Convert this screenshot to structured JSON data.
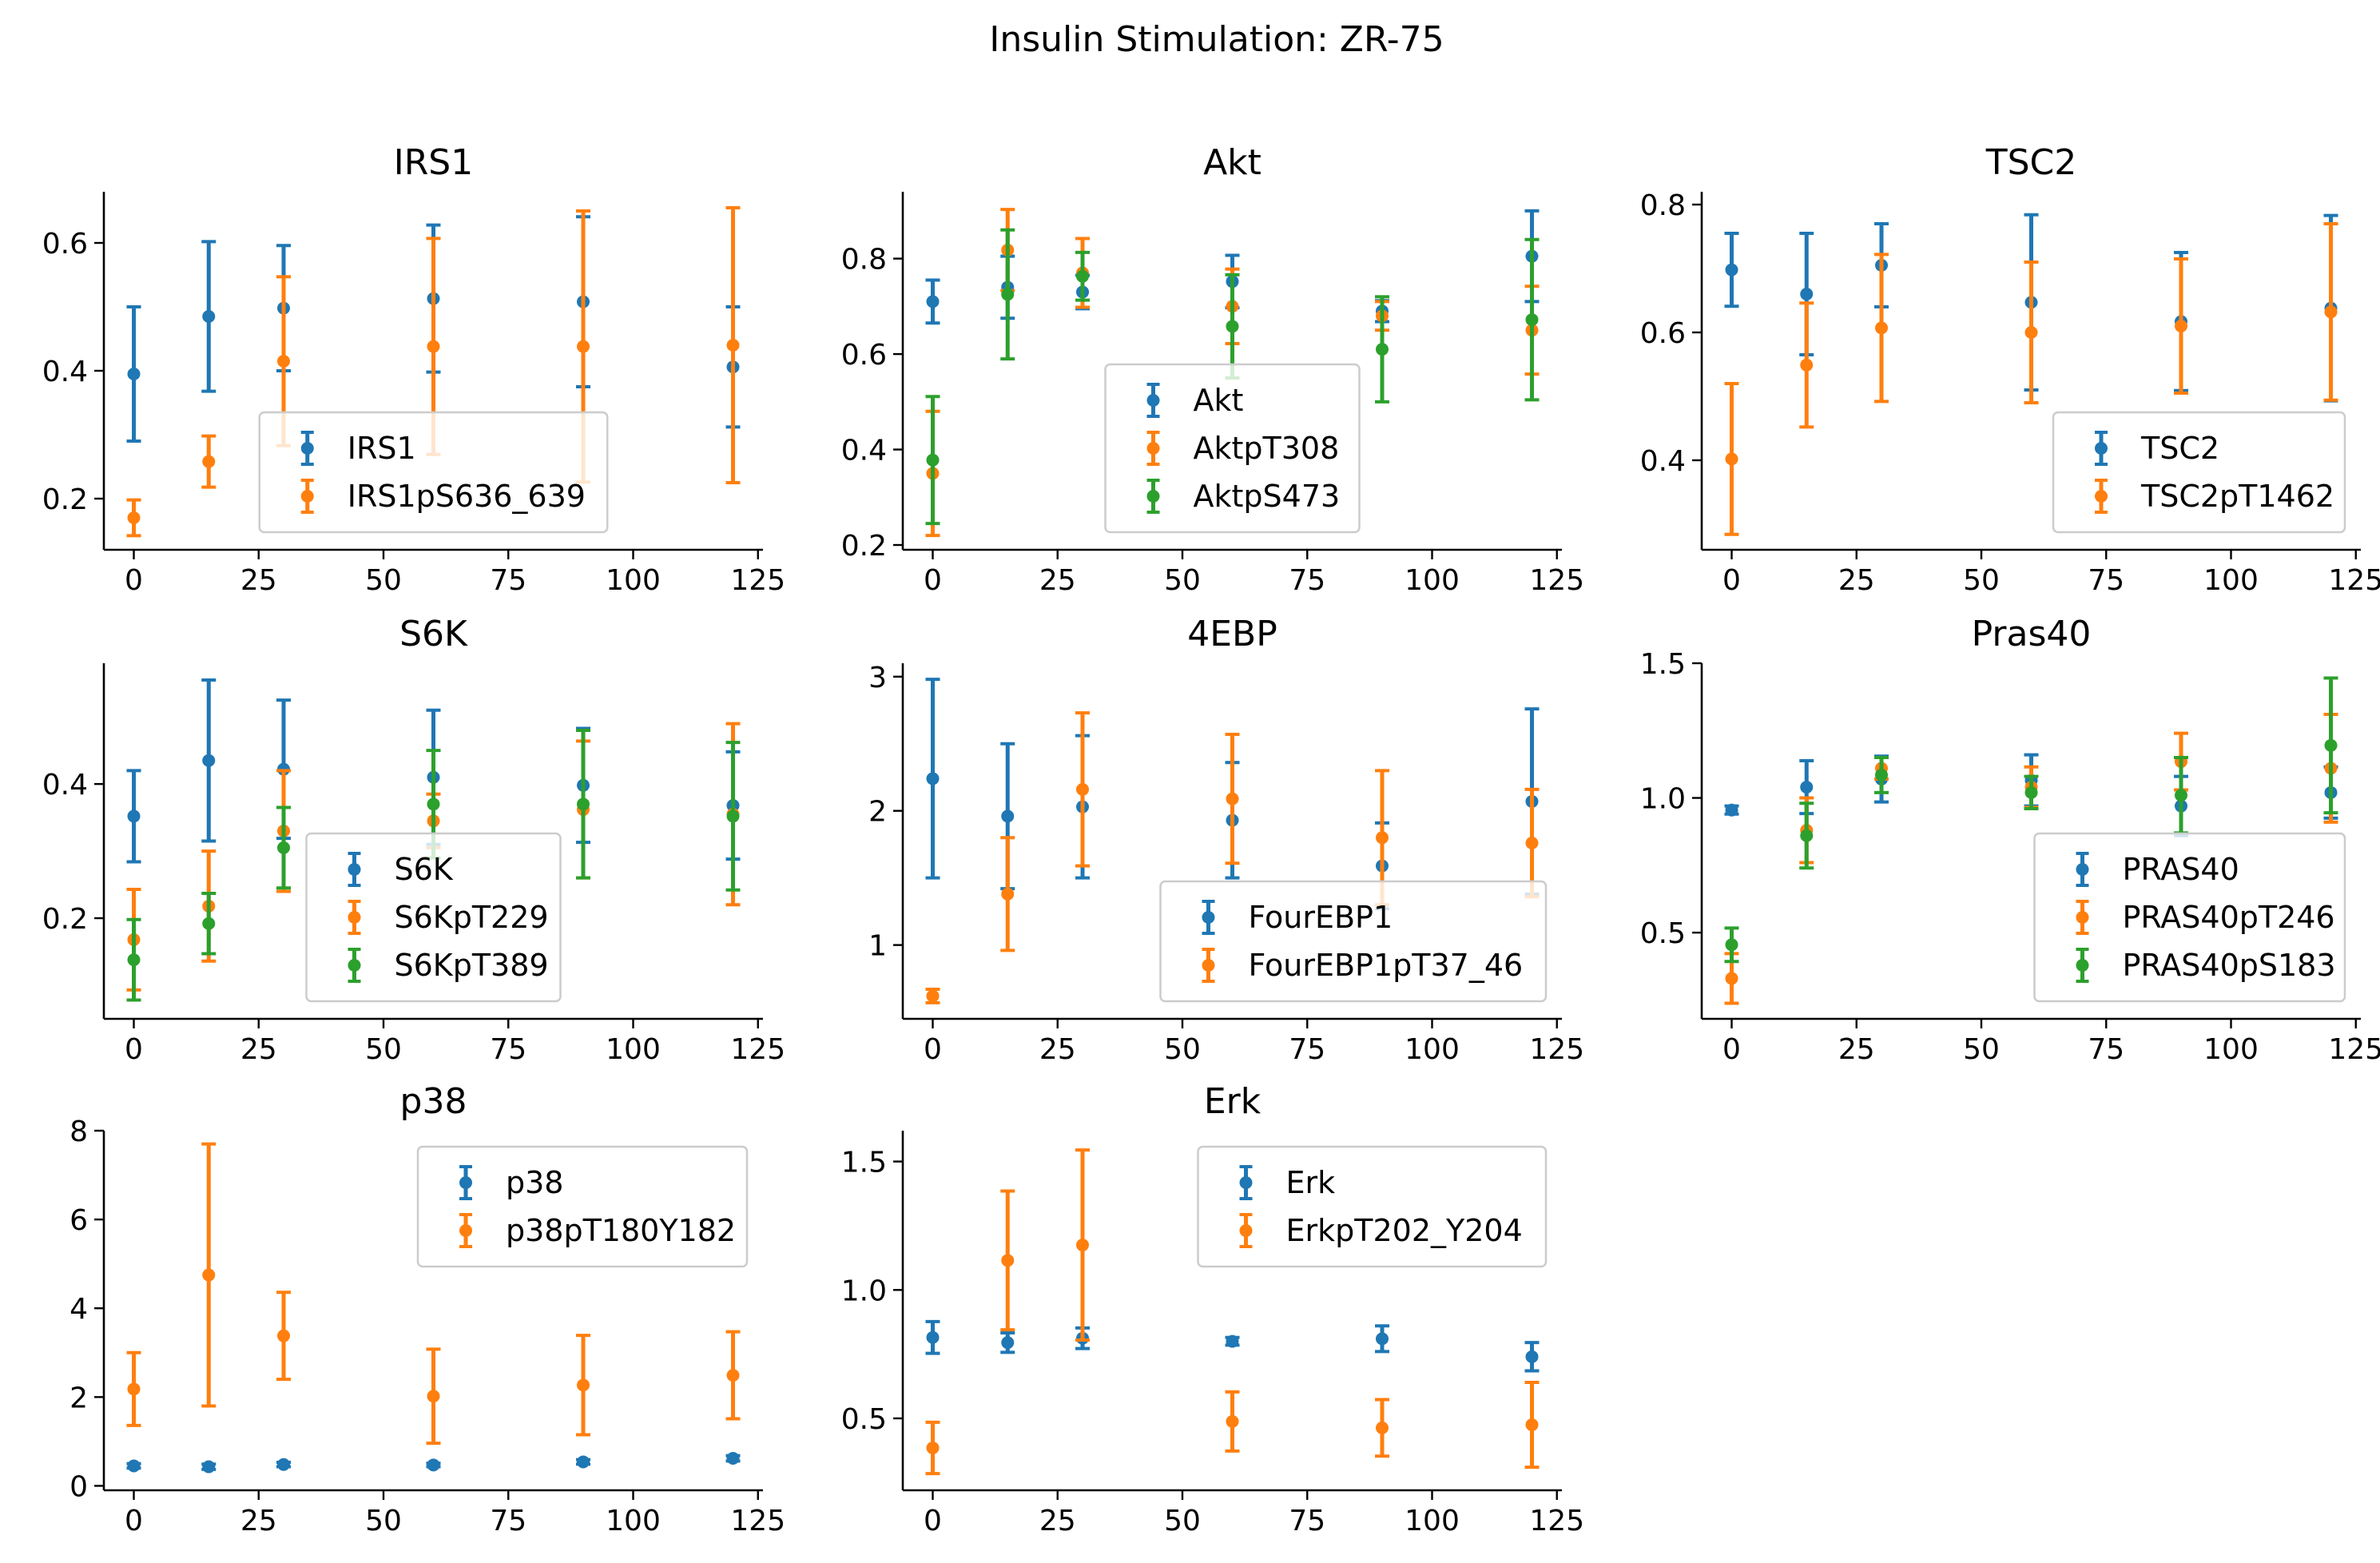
{
  "suptitle": "Insulin Stimulation: ZR-75",
  "colors": {
    "blue": "#1f77b4",
    "orange": "#ff7f0e",
    "green": "#2ca02c"
  },
  "chart_data": [
    {
      "type": "scatter",
      "title": "IRS1",
      "legend": "lower-center",
      "xlim": [
        -6,
        126
      ],
      "ylim": [
        0.12,
        0.68
      ],
      "xticks": [
        0,
        25,
        50,
        75,
        100,
        125
      ],
      "yticks": [
        0.2,
        0.4,
        0.6
      ],
      "x": [
        0,
        15,
        30,
        60,
        90,
        120
      ],
      "series": [
        {
          "name": "IRS1",
          "color": "#1f77b4",
          "y": [
            0.395,
            0.485,
            0.498,
            0.513,
            0.508,
            0.406
          ],
          "err": [
            0.105,
            0.117,
            0.098,
            0.115,
            0.133,
            0.094
          ]
        },
        {
          "name": "IRS1pS636_639",
          "color": "#ff7f0e",
          "y": [
            0.17,
            0.258,
            0.415,
            0.438,
            0.438,
            0.44
          ],
          "err": [
            0.028,
            0.04,
            0.132,
            0.169,
            0.212,
            0.215
          ]
        }
      ]
    },
    {
      "type": "scatter",
      "title": "Akt",
      "legend": "lower-center",
      "xlim": [
        -6,
        126
      ],
      "ylim": [
        0.19,
        0.94
      ],
      "xticks": [
        0,
        25,
        50,
        75,
        100,
        125
      ],
      "yticks": [
        0.2,
        0.4,
        0.6,
        0.8
      ],
      "x": [
        0,
        15,
        30,
        60,
        90,
        120
      ],
      "series": [
        {
          "name": "Akt",
          "color": "#1f77b4",
          "y": [
            0.71,
            0.74,
            0.73,
            0.752,
            0.69,
            0.805
          ],
          "err": [
            0.045,
            0.065,
            0.035,
            0.055,
            0.022,
            0.095
          ]
        },
        {
          "name": "AktpT308",
          "color": "#ff7f0e",
          "y": [
            0.35,
            0.818,
            0.77,
            0.7,
            0.68,
            0.65
          ],
          "err": [
            0.13,
            0.085,
            0.072,
            0.078,
            0.03,
            0.092
          ]
        },
        {
          "name": "AktpS473",
          "color": "#2ca02c",
          "y": [
            0.378,
            0.725,
            0.763,
            0.658,
            0.61,
            0.672
          ],
          "err": [
            0.133,
            0.135,
            0.05,
            0.108,
            0.11,
            0.168
          ]
        }
      ]
    },
    {
      "type": "scatter",
      "title": "TSC2",
      "legend": "lower-right",
      "xlim": [
        -6,
        126
      ],
      "ylim": [
        0.26,
        0.82
      ],
      "xticks": [
        0,
        25,
        50,
        75,
        100,
        125
      ],
      "yticks": [
        0.4,
        0.6,
        0.8
      ],
      "x": [
        0,
        15,
        30,
        60,
        90,
        120
      ],
      "series": [
        {
          "name": "TSC2",
          "color": "#1f77b4",
          "y": [
            0.698,
            0.66,
            0.705,
            0.647,
            0.617,
            0.638
          ],
          "err": [
            0.057,
            0.095,
            0.065,
            0.137,
            0.108,
            0.145
          ]
        },
        {
          "name": "TSC2pT1462",
          "color": "#ff7f0e",
          "y": [
            0.402,
            0.549,
            0.607,
            0.6,
            0.61,
            0.632
          ],
          "err": [
            0.118,
            0.097,
            0.115,
            0.11,
            0.105,
            0.138
          ]
        }
      ]
    },
    {
      "type": "scatter",
      "title": "S6K",
      "legend": "lower-center",
      "xlim": [
        -6,
        126
      ],
      "ylim": [
        0.05,
        0.58
      ],
      "xticks": [
        0,
        25,
        50,
        75,
        100,
        125
      ],
      "yticks": [
        0.2,
        0.4
      ],
      "x": [
        0,
        15,
        30,
        60,
        90,
        120
      ],
      "series": [
        {
          "name": "S6K",
          "color": "#1f77b4",
          "y": [
            0.352,
            0.435,
            0.422,
            0.41,
            0.398,
            0.368
          ],
          "err": [
            0.068,
            0.12,
            0.103,
            0.1,
            0.085,
            0.08
          ]
        },
        {
          "name": "S6KpT229",
          "color": "#ff7f0e",
          "y": [
            0.168,
            0.218,
            0.33,
            0.345,
            0.362,
            0.355
          ],
          "err": [
            0.075,
            0.082,
            0.09,
            0.04,
            0.102,
            0.135
          ]
        },
        {
          "name": "S6KpT389",
          "color": "#2ca02c",
          "y": [
            0.138,
            0.192,
            0.305,
            0.37,
            0.37,
            0.352
          ],
          "err": [
            0.06,
            0.045,
            0.06,
            0.08,
            0.11,
            0.11
          ]
        }
      ]
    },
    {
      "type": "scatter",
      "title": "4EBP",
      "legend": "lower-right",
      "xlim": [
        -6,
        126
      ],
      "ylim": [
        0.45,
        3.1
      ],
      "xticks": [
        0,
        25,
        50,
        75,
        100,
        125
      ],
      "yticks": [
        1,
        2,
        3
      ],
      "x": [
        0,
        15,
        30,
        60,
        90,
        120
      ],
      "series": [
        {
          "name": "FourEBP1",
          "color": "#1f77b4",
          "y": [
            2.24,
            1.96,
            2.03,
            1.93,
            1.59,
            2.07
          ],
          "err": [
            0.74,
            0.54,
            0.53,
            0.43,
            0.32,
            0.69
          ]
        },
        {
          "name": "FourEBP1pT37_46",
          "color": "#ff7f0e",
          "y": [
            0.62,
            1.38,
            2.16,
            2.09,
            1.8,
            1.76
          ],
          "err": [
            0.05,
            0.42,
            0.57,
            0.48,
            0.5,
            0.4
          ]
        }
      ]
    },
    {
      "type": "scatter",
      "title": "Pras40",
      "legend": "lower-right",
      "xlim": [
        -6,
        126
      ],
      "ylim": [
        0.18,
        1.5
      ],
      "xticks": [
        0,
        25,
        50,
        75,
        100,
        125
      ],
      "yticks": [
        0.5,
        1.0,
        1.5
      ],
      "x": [
        0,
        15,
        30,
        60,
        90,
        120
      ],
      "series": [
        {
          "name": "PRAS40",
          "color": "#1f77b4",
          "y": [
            0.955,
            1.04,
            1.07,
            1.065,
            0.97,
            1.02
          ],
          "err": [
            0.015,
            0.098,
            0.085,
            0.095,
            0.11,
            0.095
          ]
        },
        {
          "name": "PRAS40pT246",
          "color": "#ff7f0e",
          "y": [
            0.33,
            0.88,
            1.11,
            1.04,
            1.135,
            1.11
          ],
          "err": [
            0.092,
            0.12,
            0.04,
            0.075,
            0.105,
            0.2
          ]
        },
        {
          "name": "PRAS40pS183",
          "color": "#2ca02c",
          "y": [
            0.455,
            0.86,
            1.085,
            1.02,
            1.01,
            1.195
          ],
          "err": [
            0.062,
            0.12,
            0.065,
            0.06,
            0.14,
            0.25
          ]
        }
      ]
    },
    {
      "type": "scatter",
      "title": "p38",
      "legend": "upper-right",
      "xlim": [
        -6,
        126
      ],
      "ylim": [
        -0.1,
        8.0
      ],
      "xticks": [
        0,
        25,
        50,
        75,
        100,
        125
      ],
      "yticks": [
        0,
        2,
        4,
        6,
        8
      ],
      "x": [
        0,
        15,
        30,
        60,
        90,
        120
      ],
      "series": [
        {
          "name": "p38",
          "color": "#1f77b4",
          "y": [
            0.45,
            0.43,
            0.48,
            0.47,
            0.54,
            0.62
          ],
          "err": [
            0.05,
            0.06,
            0.05,
            0.04,
            0.05,
            0.06
          ]
        },
        {
          "name": "p38pT180Y182",
          "color": "#ff7f0e",
          "y": [
            2.18,
            4.75,
            3.38,
            2.02,
            2.27,
            2.49
          ],
          "err": [
            0.82,
            2.95,
            0.98,
            1.06,
            1.12,
            0.98
          ]
        }
      ]
    },
    {
      "type": "scatter",
      "title": "Erk",
      "legend": "upper-right",
      "xlim": [
        -6,
        126
      ],
      "ylim": [
        0.22,
        1.62
      ],
      "xticks": [
        0,
        25,
        50,
        75,
        100,
        125
      ],
      "yticks": [
        0.5,
        1.0,
        1.5
      ],
      "x": [
        0,
        15,
        30,
        60,
        90,
        120
      ],
      "series": [
        {
          "name": "Erk",
          "color": "#1f77b4",
          "y": [
            0.815,
            0.795,
            0.812,
            0.8,
            0.81,
            0.74
          ],
          "err": [
            0.062,
            0.038,
            0.04,
            0.015,
            0.05,
            0.055
          ]
        },
        {
          "name": "ErkpT202_Y204",
          "color": "#ff7f0e",
          "y": [
            0.385,
            1.115,
            1.175,
            0.488,
            0.463,
            0.475
          ],
          "err": [
            0.1,
            0.27,
            0.37,
            0.115,
            0.11,
            0.165
          ]
        }
      ]
    }
  ]
}
